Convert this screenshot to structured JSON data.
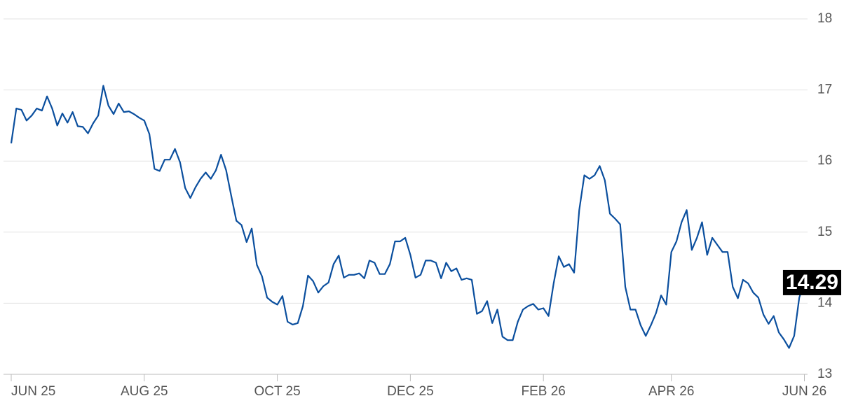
{
  "chart_data": {
    "type": "line",
    "categories": [
      "JUN 25",
      null,
      null,
      null,
      null,
      null,
      null,
      null,
      null,
      null,
      null,
      null,
      null,
      null,
      null,
      null,
      null,
      null,
      null,
      null,
      null,
      null,
      null,
      null,
      null,
      null,
      "AUG 25",
      null,
      null,
      null,
      null,
      null,
      null,
      null,
      null,
      null,
      null,
      null,
      null,
      null,
      null,
      null,
      null,
      null,
      null,
      null,
      null,
      null,
      null,
      null,
      null,
      null,
      "OCT 25",
      null,
      null,
      null,
      null,
      null,
      null,
      null,
      null,
      null,
      null,
      null,
      null,
      null,
      null,
      null,
      null,
      null,
      null,
      null,
      null,
      null,
      null,
      null,
      null,
      null,
      "DEC 25",
      null,
      null,
      null,
      null,
      null,
      null,
      null,
      null,
      null,
      null,
      null,
      null,
      null,
      null,
      null,
      null,
      null,
      null,
      null,
      null,
      null,
      null,
      null,
      null,
      null,
      "FEB 26",
      null,
      null,
      null,
      null,
      null,
      null,
      null,
      null,
      null,
      null,
      null,
      null,
      null,
      null,
      null,
      null,
      null,
      null,
      null,
      null,
      null,
      null,
      null,
      null,
      "APR 26",
      null,
      null,
      null,
      null,
      null,
      null,
      null,
      null,
      null,
      null,
      null,
      null,
      null,
      null,
      null,
      null,
      null,
      null,
      null,
      null,
      null,
      null,
      null,
      null,
      null,
      "JUN 26"
    ],
    "series": [
      {
        "color": "#0b4f9e",
        "values": [
          16.25,
          16.74,
          16.72,
          16.57,
          16.64,
          16.74,
          16.71,
          16.91,
          16.74,
          16.5,
          16.67,
          16.54,
          16.69,
          16.49,
          16.48,
          16.39,
          16.53,
          16.64,
          17.06,
          16.78,
          16.66,
          16.81,
          16.69,
          16.7,
          16.66,
          16.61,
          16.57,
          16.38,
          15.89,
          15.86,
          16.02,
          16.02,
          16.17,
          15.98,
          15.62,
          15.48,
          15.63,
          15.75,
          15.84,
          15.75,
          15.87,
          16.09,
          15.87,
          15.51,
          15.16,
          15.1,
          14.86,
          15.05,
          14.54,
          14.38,
          14.08,
          14.02,
          13.98,
          14.1,
          13.74,
          13.7,
          13.72,
          13.96,
          14.39,
          14.31,
          14.15,
          14.24,
          14.29,
          14.55,
          14.67,
          14.36,
          14.4,
          14.4,
          14.42,
          14.35,
          14.6,
          14.57,
          14.41,
          14.41,
          14.55,
          14.87,
          14.87,
          14.92,
          14.68,
          14.36,
          14.4,
          14.6,
          14.6,
          14.57,
          14.35,
          14.57,
          14.45,
          14.49,
          14.33,
          14.35,
          14.33,
          13.85,
          13.89,
          14.03,
          13.72,
          13.91,
          13.53,
          13.48,
          13.48,
          13.74,
          13.91,
          13.96,
          13.99,
          13.91,
          13.93,
          13.82,
          14.28,
          14.66,
          14.51,
          14.55,
          14.43,
          15.31,
          15.8,
          15.75,
          15.8,
          15.93,
          15.73,
          15.26,
          15.19,
          15.11,
          14.23,
          13.91,
          13.91,
          13.69,
          13.54,
          13.69,
          13.86,
          14.11,
          13.98,
          14.72,
          14.87,
          15.14,
          15.31,
          14.75,
          14.92,
          15.14,
          14.68,
          14.92,
          14.82,
          14.72,
          14.72,
          14.23,
          14.07,
          14.33,
          14.28,
          14.15,
          14.08,
          13.84,
          13.71,
          13.82,
          13.59,
          13.49,
          13.37,
          13.54,
          14.08,
          14.29
        ]
      }
    ],
    "ylim": [
      13,
      18
    ],
    "yticks": [
      13,
      14,
      15,
      16,
      17,
      18
    ],
    "grid": true
  }
}
